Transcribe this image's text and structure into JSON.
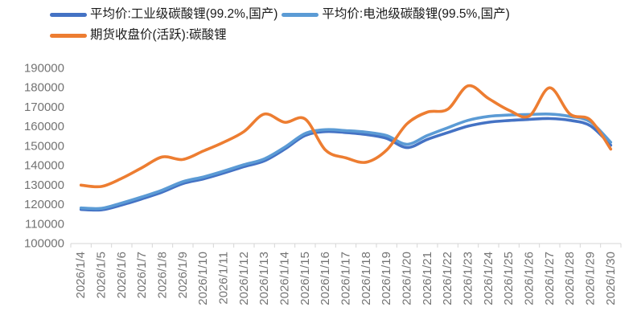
{
  "chart": {
    "background": "#ffffff",
    "axis_text_color": "#737373",
    "axis_line_color": "#d6d6d6",
    "legend_text_color": "#1a1a1a"
  },
  "chart_data": {
    "type": "line",
    "smooth": true,
    "grid": false,
    "title": "",
    "xlabel": "",
    "ylabel": "",
    "legend_position": "top-left",
    "ylim": [
      100000,
      190000
    ],
    "ystep": 10000,
    "y_tick_labels": [
      "100000",
      "110000",
      "120000",
      "130000",
      "140000",
      "150000",
      "160000",
      "170000",
      "180000",
      "190000"
    ],
    "categories": [
      "2026/1/4",
      "2026/1/5",
      "2026/1/6",
      "2026/1/7",
      "2026/1/8",
      "2026/1/9",
      "2026/1/10",
      "2026/1/11",
      "2026/1/12",
      "2026/1/13",
      "2026/1/14",
      "2026/1/15",
      "2026/1/16",
      "2026/1/17",
      "2026/1/18",
      "2026/1/19",
      "2026/1/20",
      "2026/1/21",
      "2026/1/22",
      "2026/1/23",
      "2026/1/24",
      "2026/1/25",
      "2026/1/26",
      "2026/1/27",
      "2026/1/28",
      "2026/1/29",
      "2026/1/30"
    ],
    "series": [
      {
        "id": "industrial-avg",
        "name": "平均价:工业级碳酸锂(99.2%,国产)",
        "color": "#4472C4",
        "values": [
          117500,
          117300,
          119800,
          123000,
          126500,
          130800,
          133200,
          136200,
          139500,
          142500,
          148500,
          155500,
          157500,
          157000,
          156000,
          154000,
          149300,
          153500,
          157000,
          160300,
          162300,
          163200,
          163800,
          164200,
          163300,
          160500,
          150500
        ]
      },
      {
        "id": "battery-avg",
        "name": "平均价:电池级碳酸锂(99.5%,国产)",
        "color": "#5B9BD5",
        "values": [
          118300,
          118100,
          120800,
          124000,
          127500,
          131800,
          134200,
          137200,
          140500,
          143500,
          149500,
          156500,
          158500,
          158000,
          157200,
          155500,
          151000,
          155500,
          159500,
          163300,
          165300,
          166000,
          166300,
          166500,
          165300,
          162500,
          152000
        ]
      },
      {
        "id": "futures-close",
        "name": "期货收盘价(活跃):碳酸锂",
        "color": "#ED7D31",
        "values": [
          130000,
          129300,
          133500,
          139000,
          144500,
          143200,
          147500,
          152000,
          157500,
          166500,
          162300,
          164000,
          148000,
          144000,
          141800,
          148000,
          161500,
          167500,
          169000,
          181000,
          174500,
          168500,
          165500,
          180000,
          166500,
          163500,
          148500
        ]
      }
    ]
  }
}
